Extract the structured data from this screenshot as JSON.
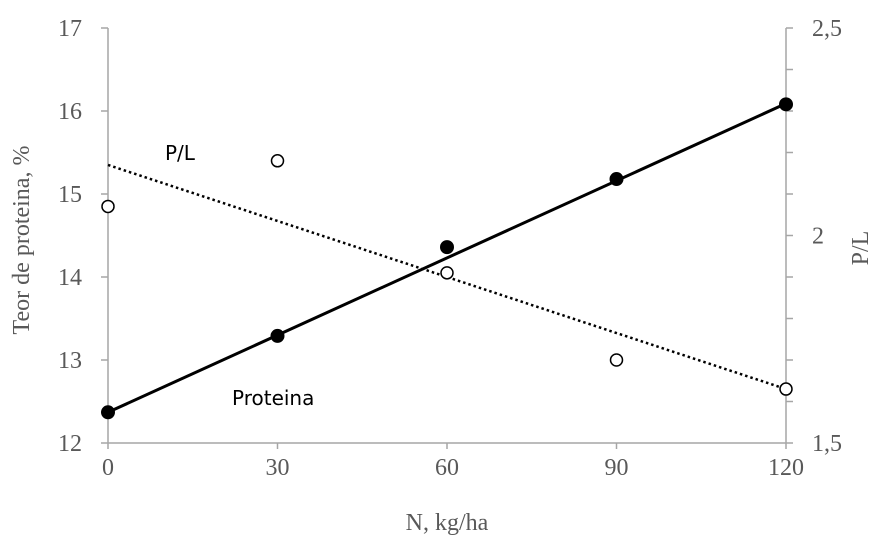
{
  "chart_data": {
    "type": "scatter",
    "title": "",
    "xlabel": "N, kg/ha",
    "ylabel_left": "Teor de proteina, %",
    "ylabel_right": "P/L",
    "x_ticks": [
      "0",
      "30",
      "60",
      "90",
      "120"
    ],
    "y_left_ticks": [
      "12",
      "13",
      "14",
      "15",
      "16",
      "17"
    ],
    "y_right_ticks": [
      "1,5",
      "2",
      "2,5"
    ],
    "xlim": [
      0,
      120
    ],
    "ylim_left": [
      12,
      17
    ],
    "ylim_right": [
      1.5,
      2.5
    ],
    "grid": false,
    "series": [
      {
        "name": "Proteina",
        "axis": "left",
        "marker": "filled-circle",
        "x": [
          0,
          30,
          60,
          90,
          120
        ],
        "y": [
          12.37,
          13.29,
          14.36,
          15.18,
          16.08
        ],
        "trendline": {
          "style": "solid",
          "y_start": 12.37,
          "y_end": 16.09
        }
      },
      {
        "name": "P/L",
        "axis": "right",
        "marker": "open-circle",
        "x": [
          0,
          30,
          60,
          90,
          120
        ],
        "y": [
          2.07,
          2.18,
          1.91,
          1.7,
          1.63
        ],
        "trendline": {
          "style": "dotted",
          "y_start": 2.17,
          "y_end": 1.63
        }
      }
    ],
    "colors": {
      "axis": "#a6a6a6",
      "text": "#595959",
      "series": "#000000"
    }
  }
}
